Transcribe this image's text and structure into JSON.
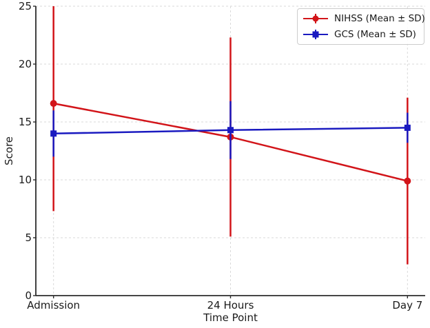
{
  "figure": {
    "background": "#ffffff",
    "text_color": "#1a1a1a",
    "grid_color": "#d9d9d9",
    "spine_color": "#2b2b2b",
    "legend_border_color": "#cccccc"
  },
  "chart_data": {
    "type": "line",
    "title": "",
    "xlabel": "Time Point",
    "ylabel": "Score",
    "categories": [
      "Admission",
      "24 Hours",
      "Day 7"
    ],
    "ylim": [
      0,
      25
    ],
    "yticks": [
      0,
      5,
      10,
      15,
      20,
      25
    ],
    "grid": true,
    "grid_style": "dashed",
    "legend_position": "upper right",
    "errorbars_clipped_to_ylim": true,
    "series": [
      {
        "name": "NIHSS (Mean ± SD)",
        "color": "#d21419",
        "marker": "circle",
        "means": [
          16.6,
          13.7,
          9.9
        ],
        "sd": [
          9.3,
          8.6,
          7.2
        ]
      },
      {
        "name": "GCS (Mean ± SD)",
        "color": "#1a1ac0",
        "marker": "square",
        "means": [
          14.0,
          14.3,
          14.5
        ],
        "sd": [
          2.0,
          2.5,
          1.3
        ]
      }
    ]
  }
}
